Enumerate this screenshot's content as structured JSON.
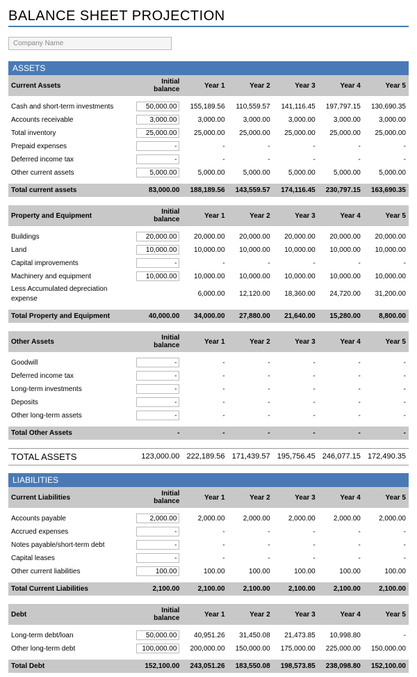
{
  "title": "BALANCE SHEET PROJECTION",
  "company_placeholder": "Company Name",
  "colors": {
    "accent": "#4a7ab5",
    "band_bg": "#c8c8c8",
    "input_border": "#bbbbbb"
  },
  "columns": [
    "Initial balance",
    "Year 1",
    "Year 2",
    "Year 3",
    "Year 4",
    "Year 5"
  ],
  "assets": {
    "band": "ASSETS",
    "current": {
      "header": "Current Assets",
      "rows": [
        {
          "label": "Cash and short-term investments",
          "init": "50,000.00",
          "y1": "155,189.56",
          "y2": "110,559.57",
          "y3": "141,116.45",
          "y4": "197,797.15",
          "y5": "130,690.35"
        },
        {
          "label": "Accounts receivable",
          "init": "3,000.00",
          "y1": "3,000.00",
          "y2": "3,000.00",
          "y3": "3,000.00",
          "y4": "3,000.00",
          "y5": "3,000.00"
        },
        {
          "label": "Total inventory",
          "init": "25,000.00",
          "y1": "25,000.00",
          "y2": "25,000.00",
          "y3": "25,000.00",
          "y4": "25,000.00",
          "y5": "25,000.00"
        },
        {
          "label": "Prepaid expenses",
          "init": "-",
          "y1": "-",
          "y2": "-",
          "y3": "-",
          "y4": "-",
          "y5": "-"
        },
        {
          "label": "Deferred income tax",
          "init": "-",
          "y1": "-",
          "y2": "-",
          "y3": "-",
          "y4": "-",
          "y5": "-"
        },
        {
          "label": "Other current assets",
          "init": "5,000.00",
          "y1": "5,000.00",
          "y2": "5,000.00",
          "y3": "5,000.00",
          "y4": "5,000.00",
          "y5": "5,000.00"
        }
      ],
      "total": {
        "label": "Total current assets",
        "init": "83,000.00",
        "y1": "188,189.56",
        "y2": "143,559.57",
        "y3": "174,116.45",
        "y4": "230,797.15",
        "y5": "163,690.35"
      }
    },
    "property": {
      "header": "Property and Equipment",
      "rows": [
        {
          "label": "Buildings",
          "init": "20,000.00",
          "y1": "20,000.00",
          "y2": "20,000.00",
          "y3": "20,000.00",
          "y4": "20,000.00",
          "y5": "20,000.00"
        },
        {
          "label": "Land",
          "init": "10,000.00",
          "y1": "10,000.00",
          "y2": "10,000.00",
          "y3": "10,000.00",
          "y4": "10,000.00",
          "y5": "10,000.00"
        },
        {
          "label": "Capital improvements",
          "init": "-",
          "y1": "-",
          "y2": "-",
          "y3": "-",
          "y4": "-",
          "y5": "-"
        },
        {
          "label": "Machinery and equipment",
          "init": "10,000.00",
          "y1": "10,000.00",
          "y2": "10,000.00",
          "y3": "10,000.00",
          "y4": "10,000.00",
          "y5": "10,000.00"
        },
        {
          "label": "Less Accumulated depreciation expense",
          "init": "",
          "y1": "6,000.00",
          "y2": "12,120.00",
          "y3": "18,360.00",
          "y4": "24,720.00",
          "y5": "31,200.00",
          "no_input": true
        }
      ],
      "total": {
        "label": "Total Property and Equipment",
        "init": "40,000.00",
        "y1": "34,000.00",
        "y2": "27,880.00",
        "y3": "21,640.00",
        "y4": "15,280.00",
        "y5": "8,800.00"
      }
    },
    "other": {
      "header": "Other Assets",
      "rows": [
        {
          "label": "Goodwill",
          "init": "-",
          "y1": "-",
          "y2": "-",
          "y3": "-",
          "y4": "-",
          "y5": "-"
        },
        {
          "label": "Deferred income tax",
          "init": "-",
          "y1": "-",
          "y2": "-",
          "y3": "-",
          "y4": "-",
          "y5": "-"
        },
        {
          "label": "Long-term investments",
          "init": "-",
          "y1": "-",
          "y2": "-",
          "y3": "-",
          "y4": "-",
          "y5": "-"
        },
        {
          "label": "Deposits",
          "init": "-",
          "y1": "-",
          "y2": "-",
          "y3": "-",
          "y4": "-",
          "y5": "-"
        },
        {
          "label": "Other long-term assets",
          "init": "-",
          "y1": "-",
          "y2": "-",
          "y3": "-",
          "y4": "-",
          "y5": "-"
        }
      ],
      "total": {
        "label": "Total Other Assets",
        "init": "-",
        "y1": "-",
        "y2": "-",
        "y3": "-",
        "y4": "-",
        "y5": "-"
      }
    },
    "grand": {
      "label": "TOTAL ASSETS",
      "init": "123,000.00",
      "y1": "222,189.56",
      "y2": "171,439.57",
      "y3": "195,756.45",
      "y4": "246,077.15",
      "y5": "172,490.35"
    }
  },
  "liabilities": {
    "band": "LIABILITIES",
    "current": {
      "header": "Current Liabilities",
      "rows": [
        {
          "label": "Accounts payable",
          "init": "2,000.00",
          "y1": "2,000.00",
          "y2": "2,000.00",
          "y3": "2,000.00",
          "y4": "2,000.00",
          "y5": "2,000.00"
        },
        {
          "label": "Accrued expenses",
          "init": "-",
          "y1": "-",
          "y2": "-",
          "y3": "-",
          "y4": "-",
          "y5": "-"
        },
        {
          "label": "Notes payable/short-term debt",
          "init": "-",
          "y1": "-",
          "y2": "-",
          "y3": "-",
          "y4": "-",
          "y5": "-"
        },
        {
          "label": "Capital leases",
          "init": "-",
          "y1": "-",
          "y2": "-",
          "y3": "-",
          "y4": "-",
          "y5": "-"
        },
        {
          "label": "Other current liabilities",
          "init": "100.00",
          "y1": "100.00",
          "y2": "100.00",
          "y3": "100.00",
          "y4": "100.00",
          "y5": "100.00"
        }
      ],
      "total": {
        "label": "Total Current Liabilities",
        "init": "2,100.00",
        "y1": "2,100.00",
        "y2": "2,100.00",
        "y3": "2,100.00",
        "y4": "2,100.00",
        "y5": "2,100.00"
      }
    },
    "debt": {
      "header": "Debt",
      "rows": [
        {
          "label": "Long-term debt/loan",
          "init": "50,000.00",
          "y1": "40,951.26",
          "y2": "31,450.08",
          "y3": "21,473.85",
          "y4": "10,998.80",
          "y5": "-"
        },
        {
          "label": "Other long-term debt",
          "init": "100,000.00",
          "y1": "200,000.00",
          "y2": "150,000.00",
          "y3": "175,000.00",
          "y4": "225,000.00",
          "y5": "150,000.00"
        }
      ],
      "total": {
        "label": "Total Debt",
        "init": "152,100.00",
        "y1": "243,051.26",
        "y2": "183,550.08",
        "y3": "198,573.85",
        "y4": "238,098.80",
        "y5": "152,100.00"
      }
    }
  }
}
